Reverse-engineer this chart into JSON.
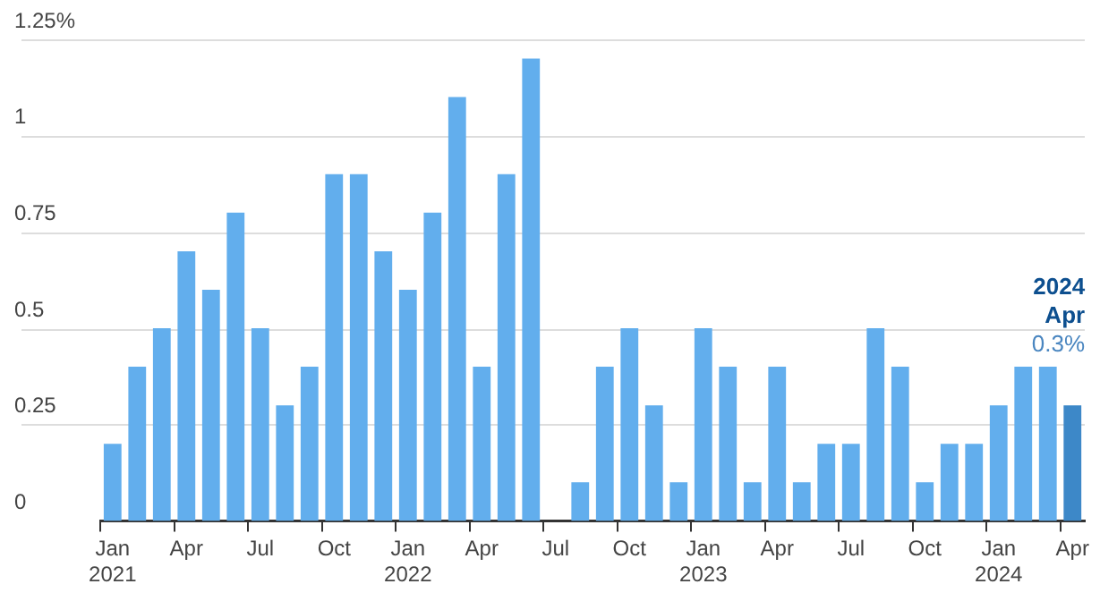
{
  "chart_data": {
    "type": "bar",
    "categories": [
      "Jan 2021",
      null,
      null,
      "Apr",
      null,
      null,
      "Jul",
      null,
      null,
      "Oct",
      null,
      null,
      "Jan 2022",
      null,
      null,
      "Apr",
      null,
      null,
      "Jul",
      null,
      null,
      "Oct",
      null,
      null,
      "Jan 2023",
      null,
      null,
      "Apr",
      null,
      null,
      "Jul",
      null,
      null,
      "Oct",
      null,
      null,
      "Jan 2024",
      null,
      null,
      "Apr"
    ],
    "values": [
      0.2,
      0.4,
      0.5,
      0.7,
      0.6,
      0.8,
      0.5,
      0.3,
      0.4,
      0.9,
      0.9,
      0.7,
      0.6,
      0.8,
      1.1,
      0.4,
      0.9,
      1.2,
      0,
      0.1,
      0.4,
      0.5,
      0.3,
      0.1,
      0.5,
      0.4,
      0.1,
      0.4,
      0.1,
      0.2,
      0.2,
      0.5,
      0.4,
      0.1,
      0.2,
      0.2,
      0.3,
      0.4,
      0.4,
      0.3
    ],
    "colors": [
      "#62aeed",
      "#62aeed",
      "#62aeed",
      "#62aeed",
      "#62aeed",
      "#62aeed",
      "#62aeed",
      "#62aeed",
      "#62aeed",
      "#62aeed",
      "#62aeed",
      "#62aeed",
      "#62aeed",
      "#62aeed",
      "#62aeed",
      "#62aeed",
      "#62aeed",
      "#62aeed",
      "#62aeed",
      "#62aeed",
      "#62aeed",
      "#62aeed",
      "#62aeed",
      "#62aeed",
      "#62aeed",
      "#62aeed",
      "#62aeed",
      "#62aeed",
      "#62aeed",
      "#62aeed",
      "#62aeed",
      "#62aeed",
      "#62aeed",
      "#62aeed",
      "#62aeed",
      "#62aeed",
      "#62aeed",
      "#62aeed",
      "#62aeed",
      "#3d88c8"
    ],
    "value_labels": [
      null,
      null,
      null,
      null,
      null,
      null,
      null,
      null,
      null,
      null,
      null,
      null,
      null,
      null,
      null,
      null,
      null,
      null,
      null,
      null,
      null,
      null,
      null,
      null,
      null,
      null,
      null,
      null,
      null,
      null,
      null,
      null,
      null,
      null,
      null,
      null,
      null,
      null,
      null,
      "0.3%"
    ],
    "annotations": [
      "2024 Apr"
    ],
    "ylim": [
      0,
      1.25
    ],
    "yticks": [
      0,
      0.25,
      0.5,
      0.75,
      1,
      {
        "value": 1.25,
        "label": "1.25%"
      }
    ],
    "grid": "y",
    "legend": false
  }
}
